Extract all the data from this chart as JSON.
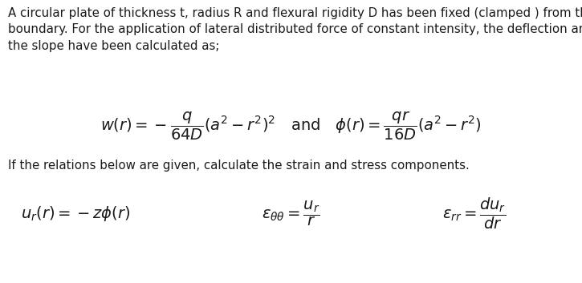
{
  "background_color": "#ffffff",
  "text_paragraph": "A circular plate of thickness t, radius R and flexural rigidity D has been fixed (clamped ) from the\nboundary. For the application of lateral distributed force of constant intensity, the deflection and\nthe slope have been calculated as;",
  "text_paragraph2": "If the relations below are given, calculate the strain and stress components.",
  "figsize": [
    7.25,
    3.53
  ],
  "dpi": 100,
  "text_fontsize": 10.8,
  "math_fontsize": 14,
  "math_fontsize2": 14,
  "text_color": "#1a1a1a"
}
